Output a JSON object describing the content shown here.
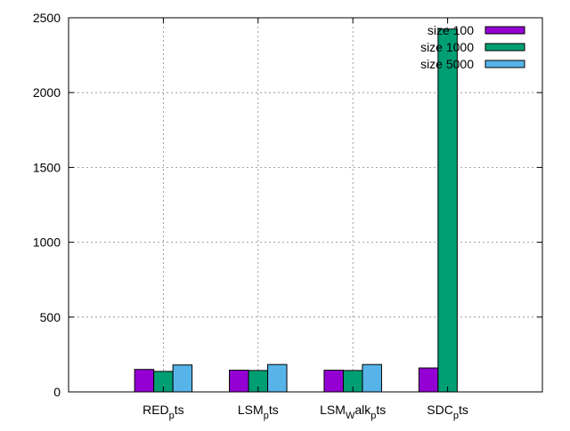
{
  "chart_data": {
    "type": "bar",
    "title": "",
    "xlabel": "",
    "ylabel": "",
    "categories": [
      {
        "base": "RED",
        "sub": "p",
        "tail": "ts"
      },
      {
        "base": "LSM",
        "sub": "p",
        "tail": "ts"
      },
      {
        "base": "LSM",
        "sub": "W",
        "tail": "alk",
        "sub2": "p",
        "tail2": "ts"
      },
      {
        "base": "SDC",
        "sub": "p",
        "tail": "ts"
      }
    ],
    "series": [
      {
        "name": "size 100",
        "color": "#9400d3",
        "values": [
          150,
          145,
          145,
          160
        ]
      },
      {
        "name": "size 1000",
        "color": "#009e73",
        "values": [
          137,
          143,
          143,
          2425
        ]
      },
      {
        "name": "size 5000",
        "color": "#56b4e9",
        "values": [
          180,
          183,
          183,
          null
        ]
      }
    ],
    "ylim": [
      0,
      2500
    ],
    "yticks": [
      0,
      500,
      1000,
      1500,
      2000,
      2500
    ],
    "grid": true,
    "legend": "top-right"
  }
}
